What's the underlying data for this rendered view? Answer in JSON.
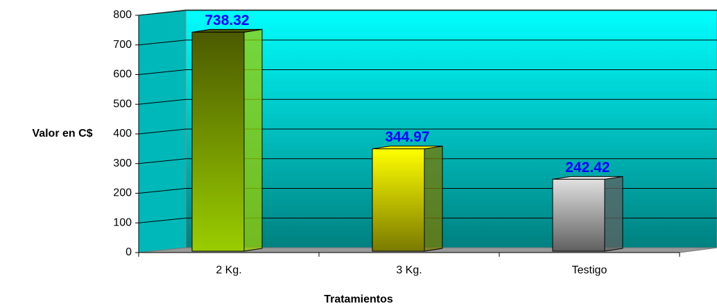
{
  "chart_data": {
    "type": "bar",
    "categories": [
      "2 Kg.",
      "3 Kg.",
      "Testigo"
    ],
    "values": [
      738.32,
      344.97,
      242.42
    ],
    "colors": [
      [
        "#4b5a00",
        "#9acd00"
      ],
      [
        "#ffff00",
        "#7a7a00"
      ],
      [
        "#e0e0e0",
        "#606060"
      ]
    ],
    "ylabel": "Valor en C$",
    "xlabel": "Tratamientos",
    "ylim": [
      0,
      800
    ],
    "yticks": [
      0,
      100,
      200,
      300,
      400,
      500,
      600,
      700,
      800
    ],
    "grid": true
  }
}
